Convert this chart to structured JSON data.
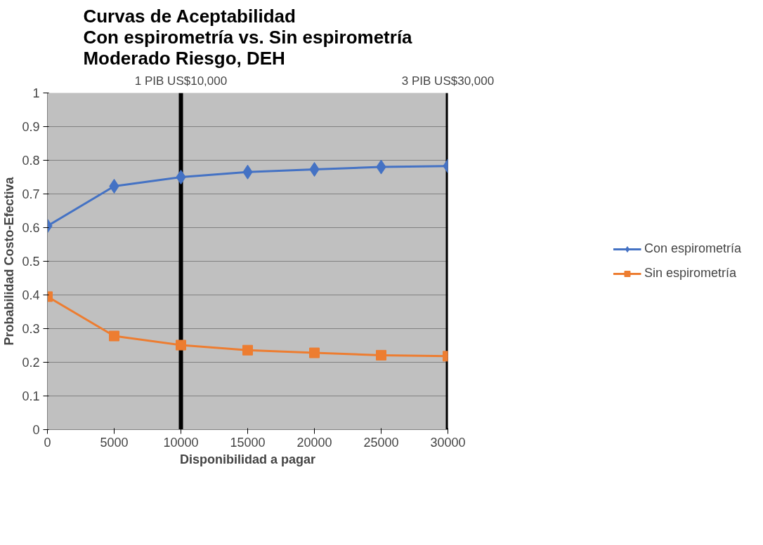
{
  "chart_data": {
    "type": "line",
    "title": "Curvas de Aceptabilidad\nCon espirometría vs. Sin espirometría\nModerado Riesgo, DEH",
    "xlabel": "Disponibilidad a pagar",
    "ylabel": "Probabilidad Costo-Efectiva",
    "x": [
      0,
      5000,
      10000,
      15000,
      20000,
      25000,
      30000
    ],
    "series": [
      {
        "name": "Con espirometría",
        "color": "#4472c4",
        "marker": "diamond",
        "values": [
          0.605,
          0.723,
          0.75,
          0.765,
          0.773,
          0.78,
          0.783
        ]
      },
      {
        "name": "Sin espirometría",
        "color": "#ed7d31",
        "marker": "square",
        "values": [
          0.395,
          0.278,
          0.251,
          0.236,
          0.228,
          0.221,
          0.218
        ]
      }
    ],
    "xlim": [
      0,
      30000
    ],
    "xticks": [
      0,
      5000,
      10000,
      15000,
      20000,
      25000,
      30000
    ],
    "ylim": [
      0,
      1
    ],
    "yticks": [
      0,
      0.1,
      0.2,
      0.3,
      0.4,
      0.5,
      0.6,
      0.7,
      0.8,
      0.9,
      1
    ],
    "ref_lines": [
      {
        "axis": "x",
        "value": 10000,
        "label": "1 PIB US$10,000",
        "color": "#000000"
      },
      {
        "axis": "x",
        "value": 30000,
        "label": "3 PIB US$30,000",
        "color": "#000000"
      }
    ],
    "grid": "y",
    "legend": "right"
  }
}
